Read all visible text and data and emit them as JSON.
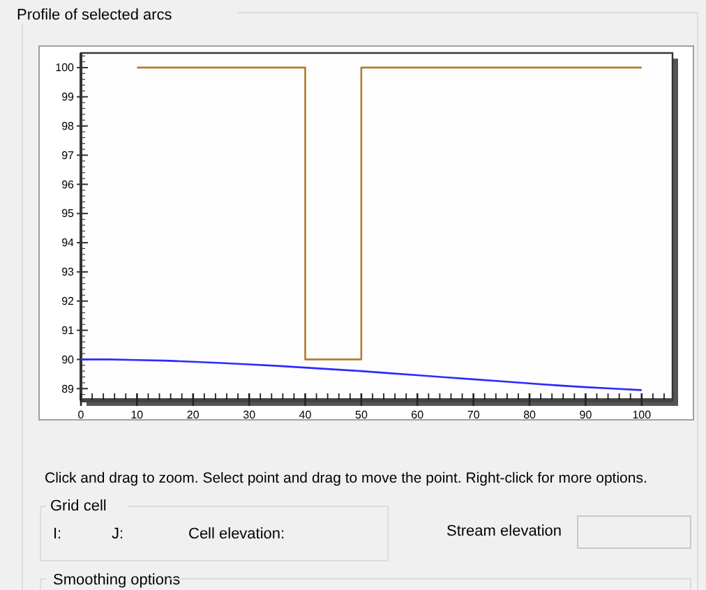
{
  "chart_data": {
    "type": "line",
    "title": "Profile of selected arcs",
    "xlim": [
      0,
      105.5
    ],
    "ylim": [
      88.6,
      100.5
    ],
    "xticks": [
      0,
      {
        "value": 2,
        "label": null
      },
      {
        "value": 4,
        "label": null
      },
      {
        "value": 6,
        "label": null
      },
      {
        "value": 8,
        "label": null
      },
      10,
      {
        "value": 12,
        "label": null
      },
      {
        "value": 14,
        "label": null
      },
      {
        "value": 16,
        "label": null
      },
      {
        "value": 18,
        "label": null
      },
      20,
      {
        "value": 22,
        "label": null
      },
      {
        "value": 24,
        "label": null
      },
      {
        "value": 26,
        "label": null
      },
      {
        "value": 28,
        "label": null
      },
      30,
      {
        "value": 32,
        "label": null
      },
      {
        "value": 34,
        "label": null
      },
      {
        "value": 36,
        "label": null
      },
      {
        "value": 38,
        "label": null
      },
      40,
      {
        "value": 42,
        "label": null
      },
      {
        "value": 44,
        "label": null
      },
      {
        "value": 46,
        "label": null
      },
      {
        "value": 48,
        "label": null
      },
      50,
      {
        "value": 52,
        "label": null
      },
      {
        "value": 54,
        "label": null
      },
      {
        "value": 56,
        "label": null
      },
      {
        "value": 58,
        "label": null
      },
      60,
      {
        "value": 62,
        "label": null
      },
      {
        "value": 64,
        "label": null
      },
      {
        "value": 66,
        "label": null
      },
      {
        "value": 68,
        "label": null
      },
      70,
      {
        "value": 72,
        "label": null
      },
      {
        "value": 74,
        "label": null
      },
      {
        "value": 76,
        "label": null
      },
      {
        "value": 78,
        "label": null
      },
      80,
      {
        "value": 82,
        "label": null
      },
      {
        "value": 84,
        "label": null
      },
      {
        "value": 86,
        "label": null
      },
      {
        "value": 88,
        "label": null
      },
      90,
      {
        "value": 92,
        "label": null
      },
      {
        "value": 94,
        "label": null
      },
      {
        "value": 96,
        "label": null
      },
      {
        "value": 98,
        "label": null
      },
      100,
      {
        "value": 102,
        "label": null
      },
      {
        "value": 104,
        "label": null
      }
    ],
    "yticks": [
      89,
      90,
      91,
      92,
      93,
      94,
      95,
      96,
      97,
      98,
      99,
      100
    ],
    "grid": false,
    "marker": "none",
    "line_style": "solid",
    "series": [
      {
        "color": "#b07d2a",
        "x": [
          10,
          20,
          30,
          40,
          40,
          50,
          50,
          60,
          70,
          80,
          90,
          100
        ],
        "values": [
          100,
          100,
          100,
          100,
          90,
          90,
          100,
          100,
          100,
          100,
          100,
          100
        ]
      },
      {
        "color": "#2a2aff",
        "x": [
          0,
          5,
          10,
          15,
          20,
          25,
          30,
          35,
          40,
          45,
          50,
          55,
          60,
          65,
          70,
          75,
          80,
          85,
          90,
          95,
          100
        ],
        "values": [
          90,
          90,
          89.98,
          89.96,
          89.92,
          89.88,
          89.83,
          89.78,
          89.72,
          89.66,
          89.6,
          89.53,
          89.46,
          89.39,
          89.32,
          89.25,
          89.18,
          89.11,
          89.05,
          89.0,
          88.95
        ]
      }
    ],
    "annotations": [
      "Click and drag to zoom.  Select point and drag to move the point.  Right-click for more options.",
      "Grid cell",
      "I:",
      "J:",
      "Cell elevation:",
      "Stream elevation",
      "Smoothing options"
    ]
  }
}
